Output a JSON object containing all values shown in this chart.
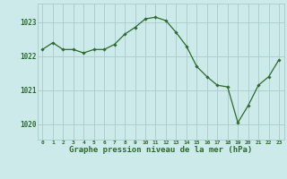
{
  "x": [
    0,
    1,
    2,
    3,
    4,
    5,
    6,
    7,
    8,
    9,
    10,
    11,
    12,
    13,
    14,
    15,
    16,
    17,
    18,
    19,
    20,
    21,
    22,
    23
  ],
  "y": [
    1022.2,
    1022.4,
    1022.2,
    1022.2,
    1022.1,
    1022.2,
    1022.2,
    1022.35,
    1022.65,
    1022.85,
    1023.1,
    1023.15,
    1023.05,
    1022.7,
    1022.3,
    1021.7,
    1021.4,
    1021.15,
    1021.1,
    1020.05,
    1020.55,
    1021.15,
    1021.4,
    1021.9
  ],
  "line_color": "#2d6a2d",
  "marker": "D",
  "marker_size": 1.8,
  "bg_color": "#cceaea",
  "grid_color": "#aacaca",
  "tick_color": "#2d6a2d",
  "label_color": "#2d6a2d",
  "xlabel": "Graphe pression niveau de la mer (hPa)",
  "xlabel_fontsize": 6.5,
  "ytick_labels": [
    "1020",
    "1021",
    "1022",
    "1023"
  ],
  "ytick_vals": [
    1020,
    1021,
    1022,
    1023
  ],
  "ylim": [
    1019.55,
    1023.55
  ],
  "xlim": [
    -0.5,
    23.5
  ]
}
